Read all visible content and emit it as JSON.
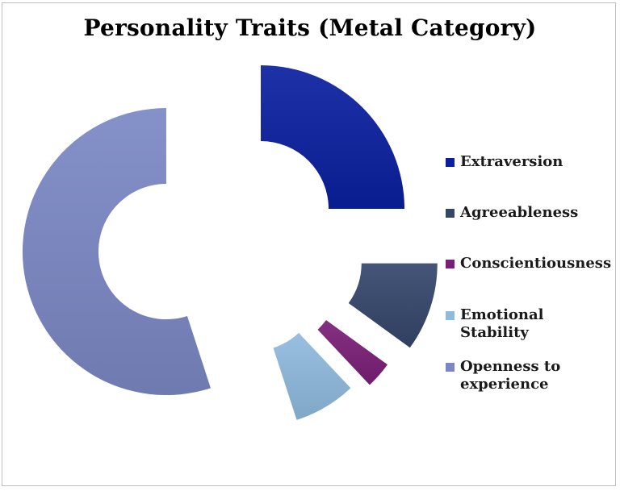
{
  "chart_data": {
    "type": "pie",
    "variant": "exploded-donut",
    "title": "Personality Traits (Metal Category)",
    "legend_position": "right",
    "slices": [
      {
        "label": "Extraversion",
        "legend_label": "Extraversion",
        "value": 25,
        "color": "#0a1f9f"
      },
      {
        "label": "Agreeableness",
        "legend_label": "Agreeableness",
        "value": 10,
        "color": "#35466b"
      },
      {
        "label": "Conscientiousness",
        "legend_label": "Conscientiousness",
        "value": 3,
        "color": "#7a1f77"
      },
      {
        "label": "Emotional Stability",
        "legend_label": "Emotional\nStability",
        "value": 7,
        "color": "#8fb9dd"
      },
      {
        "label": "Openness to experience",
        "legend_label": "Openness to\nexperience",
        "value": 55,
        "color": "#7a87c4"
      }
    ]
  }
}
